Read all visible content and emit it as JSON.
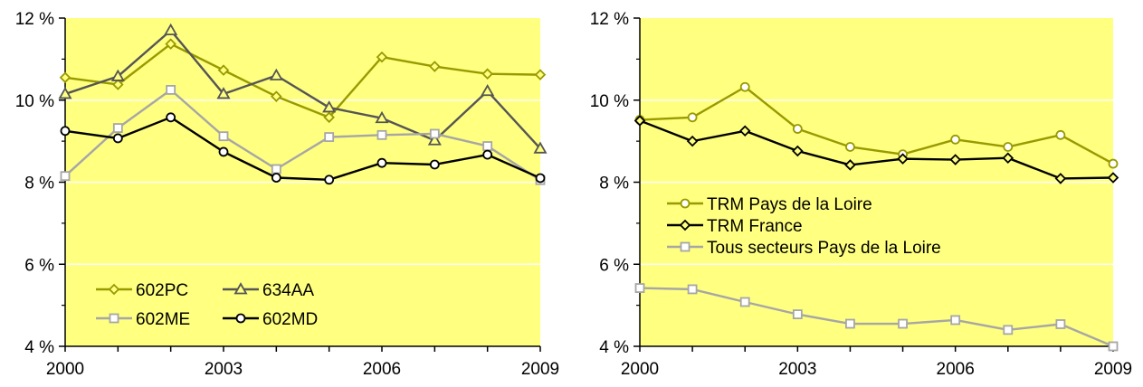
{
  "chart_data": [
    {
      "type": "line",
      "title": "",
      "xlabel": "",
      "ylabel": "",
      "x": [
        2000,
        2001,
        2002,
        2003,
        2004,
        2005,
        2006,
        2007,
        2008,
        2009
      ],
      "x_ticks": [
        "2000",
        "2003",
        "2006",
        "2009"
      ],
      "ylim": [
        4,
        12
      ],
      "y_ticks": [
        "4 %",
        "6 %",
        "8 %",
        "10 %",
        "12 %"
      ],
      "grid": true,
      "legend": "bottom-left",
      "plot_background": "#ffff80",
      "series": [
        {
          "name": "602PC",
          "marker": "diamond",
          "color": "#999900",
          "values": [
            10.55,
            10.38,
            11.37,
            10.73,
            10.09,
            9.58,
            11.05,
            10.82,
            10.64,
            10.62
          ]
        },
        {
          "name": "634AA",
          "marker": "triangle",
          "color": "#555555",
          "values": [
            10.15,
            10.58,
            11.7,
            10.15,
            10.6,
            9.82,
            9.56,
            9.02,
            10.22,
            8.82
          ]
        },
        {
          "name": "602ME",
          "marker": "square",
          "color": "#a6a6a6",
          "values": [
            8.15,
            9.32,
            10.25,
            9.12,
            8.32,
            9.1,
            9.15,
            9.18,
            8.88,
            8.05
          ]
        },
        {
          "name": "602MD",
          "marker": "circle",
          "color": "#000000",
          "values": [
            9.25,
            9.07,
            9.58,
            8.74,
            8.11,
            8.06,
            8.47,
            8.43,
            8.67,
            8.1
          ]
        }
      ]
    },
    {
      "type": "line",
      "title": "",
      "xlabel": "",
      "ylabel": "",
      "x": [
        2000,
        2001,
        2002,
        2003,
        2004,
        2005,
        2006,
        2007,
        2008,
        2009
      ],
      "x_ticks": [
        "2000",
        "2003",
        "2006",
        "2009"
      ],
      "ylim": [
        4,
        12
      ],
      "y_ticks": [
        "4 %",
        "6 %",
        "8 %",
        "10 %",
        "12 %"
      ],
      "grid": true,
      "legend": "center-left",
      "plot_background": "#ffff80",
      "series": [
        {
          "name": "TRM Pays de la Loire",
          "marker": "circle",
          "color": "#999900",
          "values": [
            9.52,
            9.58,
            10.32,
            9.3,
            8.86,
            8.68,
            9.04,
            8.86,
            9.15,
            8.45
          ]
        },
        {
          "name": "TRM France",
          "marker": "diamond",
          "color": "#000000",
          "values": [
            9.5,
            9.0,
            9.25,
            8.76,
            8.42,
            8.57,
            8.55,
            8.59,
            8.09,
            8.11
          ]
        },
        {
          "name": "Tous secteurs Pays de la Loire",
          "marker": "square",
          "color": "#a6a6a6",
          "values": [
            5.42,
            5.39,
            5.08,
            4.78,
            4.55,
            4.55,
            4.64,
            4.4,
            4.54,
            4.0
          ]
        }
      ]
    }
  ]
}
